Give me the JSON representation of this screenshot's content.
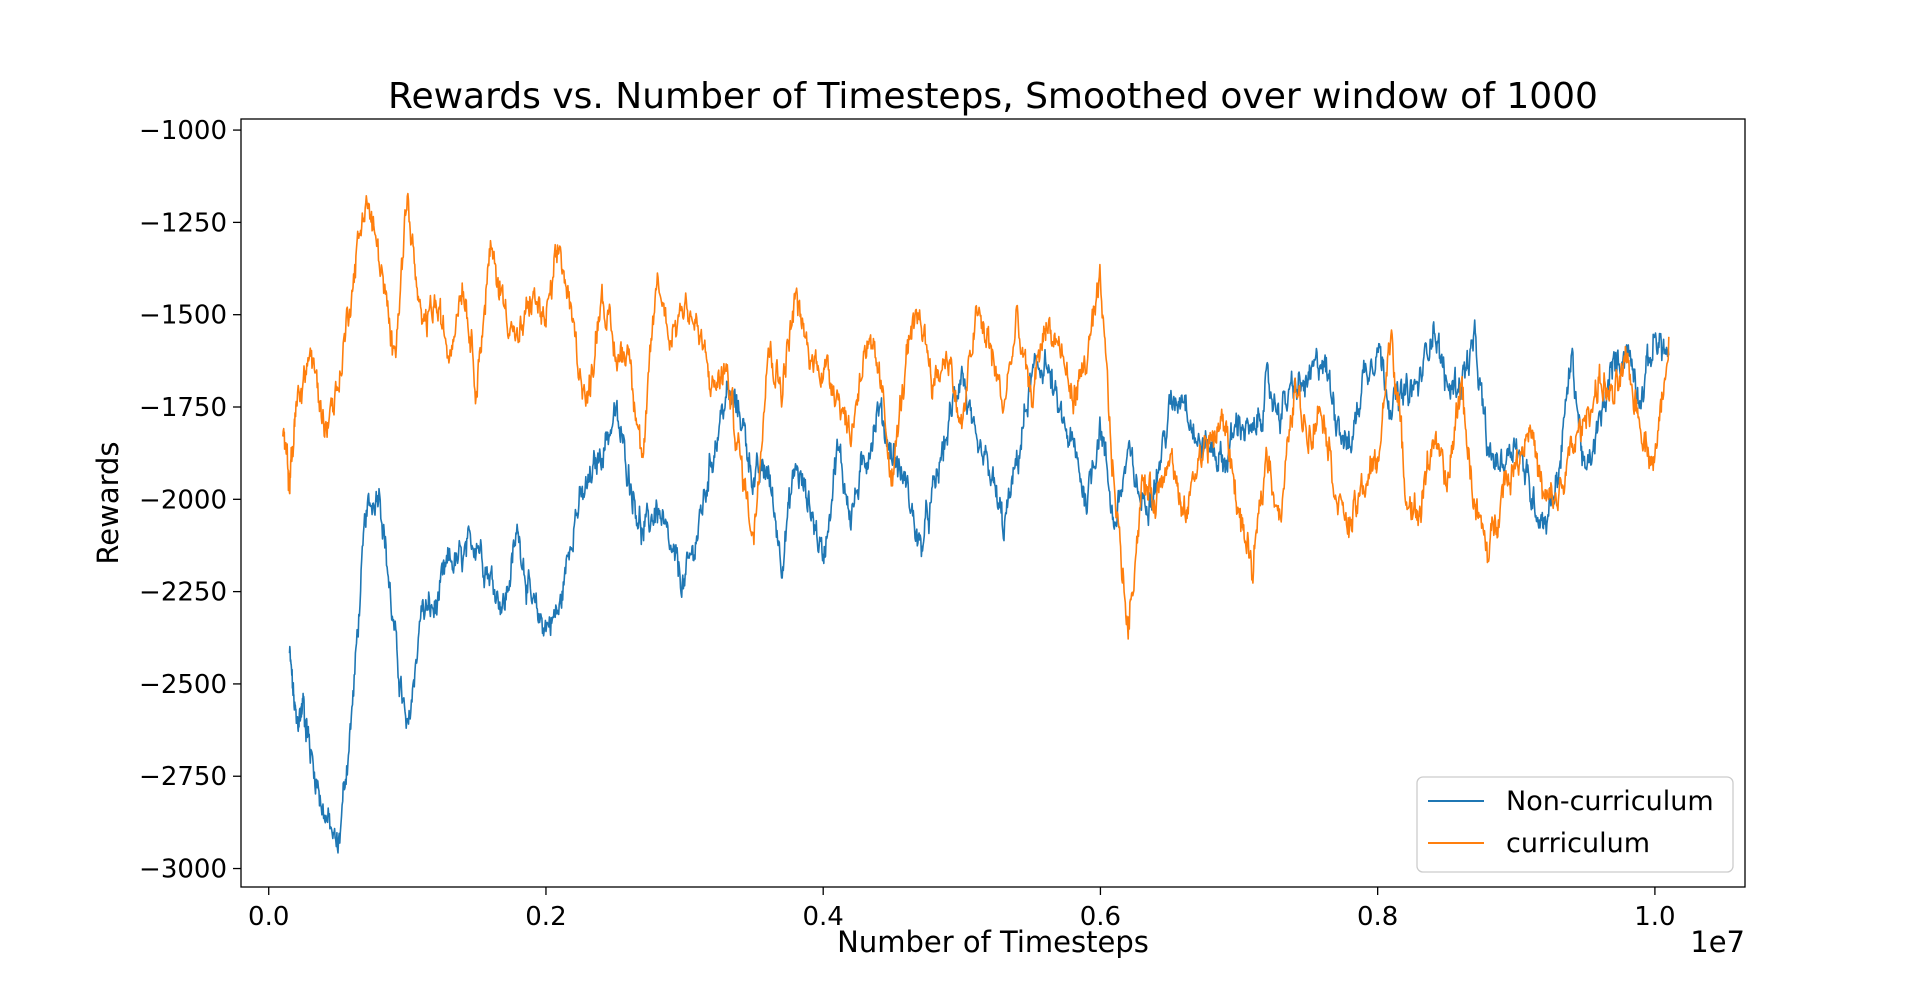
{
  "chart_data": {
    "type": "line",
    "title": "Rewards vs. Number of Timesteps, Smoothed over window of 1000",
    "xlabel": "Number of Timesteps",
    "ylabel": "Rewards",
    "x_offset_text": "1e7",
    "xlim": [
      -0.02,
      1.065
    ],
    "ylim": [
      -3050,
      -970
    ],
    "x_ticks": [
      0.0,
      0.2,
      0.4,
      0.6,
      0.8,
      1.0
    ],
    "x_tick_labels": [
      "0.0",
      "0.2",
      "0.4",
      "0.6",
      "0.8",
      "1.0"
    ],
    "y_ticks": [
      -1000,
      -1250,
      -1500,
      -1750,
      -2000,
      -2250,
      -2500,
      -2750,
      -3000
    ],
    "y_tick_labels": [
      "−1000",
      "−1250",
      "−1500",
      "−1750",
      "−2000",
      "−2250",
      "−2500",
      "−2750",
      "−3000"
    ],
    "grid": false,
    "legend_position": "bottom-right",
    "series": [
      {
        "name": "Non-curriculum",
        "color": "#1f77b4",
        "x": [
          0.015,
          0.02,
          0.025,
          0.03,
          0.04,
          0.05,
          0.06,
          0.07,
          0.08,
          0.09,
          0.1,
          0.11,
          0.12,
          0.13,
          0.14,
          0.15,
          0.16,
          0.17,
          0.18,
          0.19,
          0.2,
          0.21,
          0.22,
          0.23,
          0.24,
          0.25,
          0.26,
          0.27,
          0.28,
          0.29,
          0.3,
          0.31,
          0.32,
          0.33,
          0.34,
          0.35,
          0.36,
          0.37,
          0.38,
          0.39,
          0.4,
          0.41,
          0.42,
          0.43,
          0.44,
          0.45,
          0.46,
          0.47,
          0.48,
          0.49,
          0.5,
          0.51,
          0.52,
          0.53,
          0.54,
          0.55,
          0.56,
          0.57,
          0.58,
          0.59,
          0.6,
          0.61,
          0.62,
          0.63,
          0.64,
          0.65,
          0.66,
          0.67,
          0.68,
          0.69,
          0.7,
          0.71,
          0.72,
          0.73,
          0.74,
          0.75,
          0.76,
          0.77,
          0.78,
          0.79,
          0.8,
          0.81,
          0.82,
          0.83,
          0.84,
          0.85,
          0.86,
          0.87,
          0.88,
          0.89,
          0.9,
          0.91,
          0.92,
          0.93,
          0.94,
          0.95,
          0.96,
          0.97,
          0.98,
          0.99,
          1.0,
          1.01
        ],
        "y": [
          -2420,
          -2620,
          -2550,
          -2680,
          -2850,
          -2950,
          -2580,
          -2050,
          -1960,
          -2350,
          -2650,
          -2300,
          -2300,
          -2170,
          -2170,
          -2100,
          -2210,
          -2290,
          -2080,
          -2300,
          -2340,
          -2300,
          -2050,
          -1970,
          -1870,
          -1770,
          -1930,
          -2100,
          -2020,
          -2150,
          -2230,
          -2080,
          -1880,
          -1720,
          -1760,
          -1950,
          -1920,
          -2160,
          -1910,
          -2010,
          -2160,
          -1860,
          -2040,
          -1900,
          -1750,
          -1880,
          -1960,
          -2140,
          -1980,
          -1810,
          -1640,
          -1880,
          -1920,
          -2080,
          -1900,
          -1680,
          -1620,
          -1770,
          -1860,
          -2000,
          -1790,
          -2070,
          -1880,
          -2010,
          -1950,
          -1760,
          -1700,
          -1850,
          -1860,
          -1900,
          -1780,
          -1840,
          -1700,
          -1760,
          -1700,
          -1690,
          -1610,
          -1760,
          -1870,
          -1660,
          -1580,
          -1740,
          -1720,
          -1690,
          -1520,
          -1700,
          -1680,
          -1580,
          -1890,
          -1900,
          -1830,
          -1980,
          -2060,
          -1940,
          -1610,
          -1950,
          -1800,
          -1640,
          -1590,
          -1720,
          -1560,
          -1610
        ]
      },
      {
        "name": "curriculum",
        "color": "#ff7f0e",
        "x": [
          0.01,
          0.015,
          0.02,
          0.03,
          0.04,
          0.05,
          0.06,
          0.07,
          0.08,
          0.09,
          0.1,
          0.11,
          0.12,
          0.13,
          0.14,
          0.15,
          0.16,
          0.17,
          0.18,
          0.19,
          0.2,
          0.21,
          0.22,
          0.23,
          0.24,
          0.25,
          0.26,
          0.27,
          0.28,
          0.29,
          0.3,
          0.31,
          0.32,
          0.33,
          0.34,
          0.35,
          0.36,
          0.37,
          0.38,
          0.39,
          0.4,
          0.41,
          0.42,
          0.43,
          0.44,
          0.45,
          0.46,
          0.47,
          0.48,
          0.49,
          0.5,
          0.51,
          0.52,
          0.53,
          0.54,
          0.55,
          0.56,
          0.57,
          0.58,
          0.59,
          0.6,
          0.61,
          0.62,
          0.63,
          0.64,
          0.65,
          0.66,
          0.67,
          0.68,
          0.69,
          0.7,
          0.71,
          0.72,
          0.73,
          0.74,
          0.75,
          0.76,
          0.77,
          0.78,
          0.79,
          0.8,
          0.81,
          0.82,
          0.83,
          0.84,
          0.85,
          0.86,
          0.87,
          0.88,
          0.89,
          0.9,
          0.91,
          0.92,
          0.93,
          0.94,
          0.95,
          0.96,
          0.97,
          0.98,
          0.99,
          1.0,
          1.01
        ],
        "y": [
          -1830,
          -1950,
          -1750,
          -1600,
          -1800,
          -1700,
          -1420,
          -1180,
          -1350,
          -1620,
          -1180,
          -1550,
          -1470,
          -1600,
          -1400,
          -1680,
          -1330,
          -1470,
          -1580,
          -1450,
          -1520,
          -1320,
          -1550,
          -1750,
          -1430,
          -1620,
          -1590,
          -1900,
          -1400,
          -1560,
          -1460,
          -1550,
          -1700,
          -1650,
          -1890,
          -2100,
          -1580,
          -1700,
          -1450,
          -1620,
          -1640,
          -1700,
          -1830,
          -1580,
          -1660,
          -1940,
          -1620,
          -1500,
          -1690,
          -1600,
          -1820,
          -1500,
          -1580,
          -1750,
          -1520,
          -1740,
          -1520,
          -1580,
          -1730,
          -1620,
          -1430,
          -1970,
          -2350,
          -1960,
          -2000,
          -1850,
          -2070,
          -1890,
          -1840,
          -1790,
          -2040,
          -2200,
          -1870,
          -2050,
          -1700,
          -1820,
          -1740,
          -1980,
          -2080,
          -1960,
          -1900,
          -1540,
          -1970,
          -2050,
          -1820,
          -1980,
          -1680,
          -2020,
          -2150,
          -1960,
          -1900,
          -1790,
          -2010,
          -2000,
          -1870,
          -1780,
          -1680,
          -1730,
          -1640,
          -1800,
          -1900,
          -1560
        ]
      }
    ]
  }
}
